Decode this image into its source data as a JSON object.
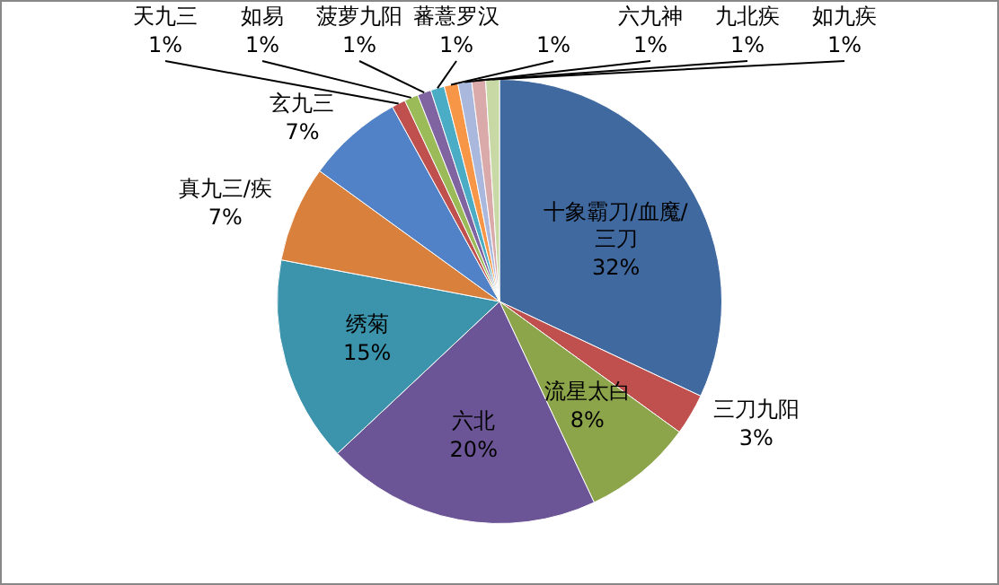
{
  "chart_data": {
    "type": "pie",
    "legend": false,
    "categories": [
      "十象霸刀/血魔/三刀",
      "三刀九阳",
      "流星太白",
      "六北",
      "绣菊",
      "真九三/疾",
      "玄九三",
      "天九三",
      "如易",
      "菠萝九阳",
      "蕃薏罗汉",
      null,
      "六九神",
      "九北疾",
      "如九疾"
    ],
    "values": [
      32,
      3,
      8,
      20,
      15,
      7,
      7,
      1,
      1,
      1,
      1,
      1,
      1,
      1,
      1
    ],
    "value_labels": [
      "32%",
      "3%",
      "8%",
      "20%",
      "15%",
      "7%",
      "7%",
      "1%",
      "1%",
      "1%",
      "1%",
      "1%",
      "1%",
      "1%",
      "1%"
    ],
    "colors": [
      "#4069a0",
      "#c0504d",
      "#8da54a",
      "#6c5596",
      "#3c93ac",
      "#d9813c",
      "#5181c6",
      "#c0504d",
      "#9bbb59",
      "#8064a2",
      "#4bacc6",
      "#f79646",
      "#a9b8dc",
      "#d9aaa9",
      "#c8d9a6"
    ]
  }
}
